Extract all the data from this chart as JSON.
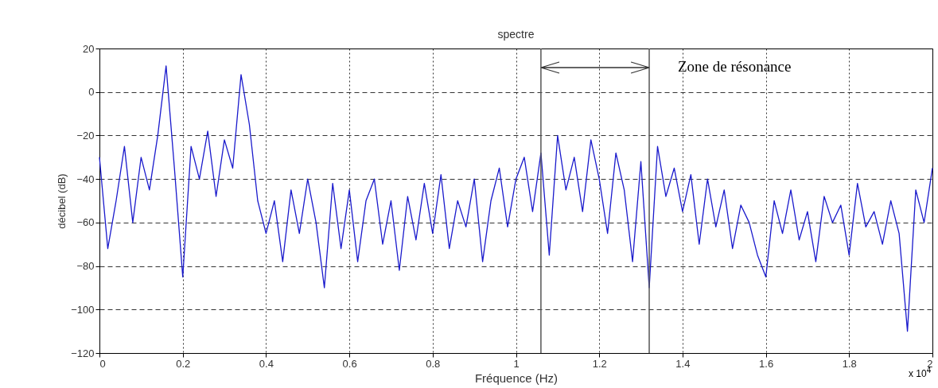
{
  "chart_data": {
    "type": "line",
    "title": "spectre",
    "xlabel": "Fréquence (Hz)",
    "ylabel": "décibel (dB)",
    "x": [
      0,
      0.02,
      0.04,
      0.06,
      0.08,
      0.1,
      0.12,
      0.14,
      0.16,
      0.18,
      0.2,
      0.22,
      0.24,
      0.26,
      0.28,
      0.3,
      0.32,
      0.34,
      0.36,
      0.38,
      0.4,
      0.42,
      0.44,
      0.46,
      0.48,
      0.5,
      0.52,
      0.54,
      0.56,
      0.58,
      0.6,
      0.62,
      0.64,
      0.66,
      0.68,
      0.7,
      0.72,
      0.74,
      0.76,
      0.78,
      0.8,
      0.82,
      0.84,
      0.86,
      0.88,
      0.9,
      0.92,
      0.94,
      0.96,
      0.98,
      1,
      1.02,
      1.04,
      1.06,
      1.08,
      1.1,
      1.12,
      1.14,
      1.16,
      1.18,
      1.2,
      1.22,
      1.24,
      1.26,
      1.28,
      1.3,
      1.32,
      1.34,
      1.36,
      1.38,
      1.4,
      1.42,
      1.44,
      1.46,
      1.48,
      1.5,
      1.52,
      1.54,
      1.56,
      1.58,
      1.6,
      1.62,
      1.64,
      1.66,
      1.68,
      1.7,
      1.72,
      1.74,
      1.76,
      1.78,
      1.8,
      1.82,
      1.84,
      1.86,
      1.88,
      1.9,
      1.92,
      1.94,
      1.96,
      1.98,
      2
    ],
    "series": [
      {
        "color": "#1a1acc",
        "values": [
          -30,
          -72,
          -50,
          -25,
          -60,
          -30,
          -45,
          -20,
          12,
          -35,
          -85,
          -25,
          -40,
          -18,
          -48,
          -22,
          -35,
          8,
          -15,
          -50,
          -65,
          -50,
          -78,
          -45,
          -65,
          -40,
          -60,
          -90,
          -42,
          -72,
          -45,
          -78,
          -50,
          -40,
          -70,
          -50,
          -82,
          -48,
          -68,
          -42,
          -65,
          -38,
          -72,
          -50,
          -62,
          -40,
          -78,
          -50,
          -35,
          -62,
          -40,
          -30,
          -55,
          -28,
          -75,
          -20,
          -45,
          -30,
          -55,
          -22,
          -40,
          -65,
          -28,
          -45,
          -78,
          -32,
          -90,
          -25,
          -48,
          -35,
          -55,
          -38,
          -70,
          -40,
          -62,
          -45,
          -72,
          -52,
          -60,
          -75,
          -85,
          -50,
          -65,
          -45,
          -68,
          -55,
          -78,
          -48,
          -60,
          -52,
          -75,
          -42,
          -62,
          -55,
          -70,
          -50,
          -65,
          -110,
          -45,
          -60,
          -35
        ]
      }
    ],
    "xlim": [
      0,
      2
    ],
    "xticks": [
      0,
      0.2,
      0.4,
      0.6,
      0.8,
      1,
      1.2,
      1.4,
      1.6,
      1.8,
      2
    ],
    "ylim": [
      -120,
      20
    ],
    "yticks": [
      -120,
      -100,
      -80,
      -60,
      -40,
      -20,
      0,
      20
    ],
    "grid": true,
    "line_style": "solid",
    "ref_lines": [
      {
        "axis": "x",
        "value": 1.06,
        "color": "#555555"
      },
      {
        "axis": "x",
        "value": 1.32,
        "color": "#555555"
      }
    ],
    "annotations": [
      "Zone de résonance",
      "x 10$^{4}$"
    ]
  }
}
